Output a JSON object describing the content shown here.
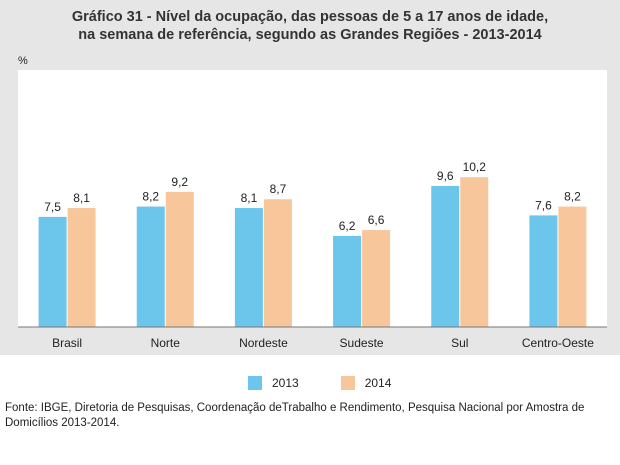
{
  "title_line1": "Gráfico 31 - Nível da ocupação, das pessoas de 5 a 17 anos de idade,",
  "title_line2": "na semana de referência, segundo as Grandes Regiões - 2013-2014",
  "source_text": "Fonte: IBGE, Diretoria de Pesquisas, Coordenação deTrabalho e Rendimento, Pesquisa Nacional por Amostra de Domicílios 2013-2014.",
  "chart_data": {
    "type": "bar",
    "title": "Gráfico 31 - Nível da ocupação, das pessoas de 5 a 17 anos de idade, na semana de referência, segundo as Grandes Regiões - 2013-2014",
    "ylabel": "%",
    "xlabel": "",
    "ylim": [
      0,
      17.5
    ],
    "grid": false,
    "legend_position": "bottom-center",
    "categories": [
      "Brasil",
      "Norte",
      "Nordeste",
      "Sudeste",
      "Sul",
      "Centro-Oeste"
    ],
    "series": [
      {
        "name": "2013",
        "color": "#6cc5ea",
        "values": [
          7.5,
          8.2,
          8.1,
          6.2,
          9.6,
          7.6
        ],
        "labels": [
          "7,5",
          "8,2",
          "8,1",
          "6,2",
          "9,6",
          "7,6"
        ]
      },
      {
        "name": "2014",
        "color": "#f8c69b",
        "values": [
          8.1,
          9.2,
          8.7,
          6.6,
          10.2,
          8.2
        ],
        "labels": [
          "8,1",
          "9,2",
          "8,7",
          "6,6",
          "10,2",
          "8,2"
        ]
      }
    ]
  }
}
